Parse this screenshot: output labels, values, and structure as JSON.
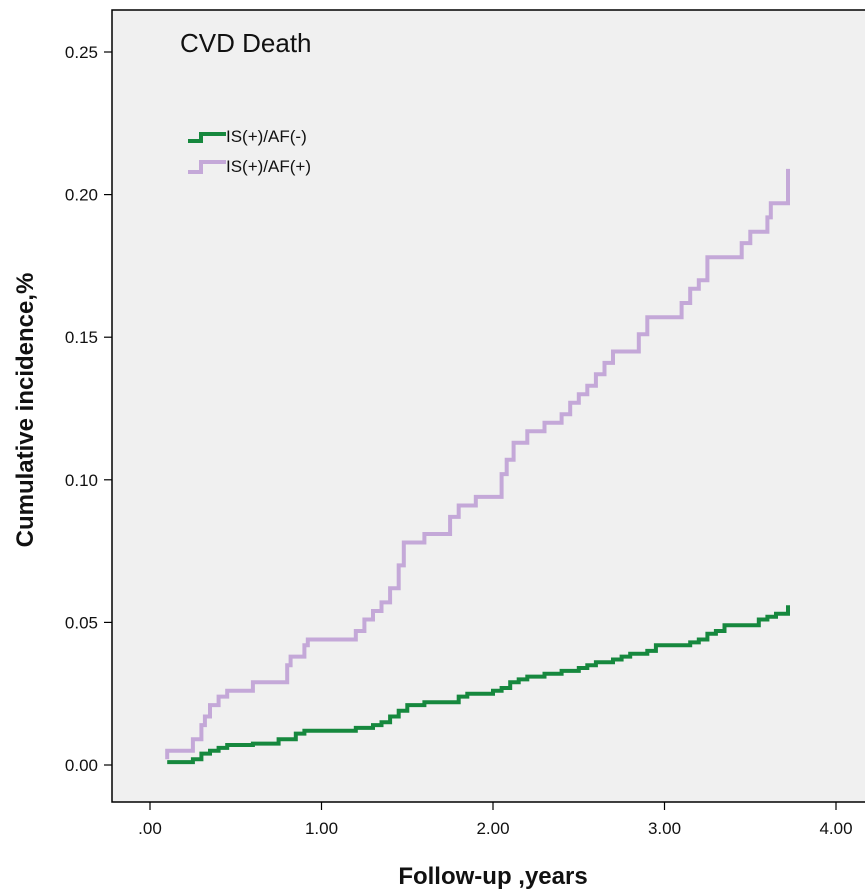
{
  "chart_data": {
    "type": "line",
    "title": "CVD Death",
    "xlabel": "Follow-up ,years",
    "ylabel": "Cumulative incidence,%",
    "xlim": [
      0,
      4
    ],
    "ylim": [
      0,
      0.25
    ],
    "x_ticks": [
      ".00",
      "1.00",
      "2.00",
      "3.00",
      "4.00"
    ],
    "y_ticks": [
      "0.00",
      "0.05",
      "0.10",
      "0.15",
      "0.20",
      "0.25"
    ],
    "x_tick_values": [
      0,
      1,
      2,
      3,
      4
    ],
    "y_tick_values": [
      0,
      0.05,
      0.1,
      0.15,
      0.2,
      0.25
    ],
    "grid": false,
    "legend_position": "top-left",
    "background": "#f0f0f0",
    "series": [
      {
        "name": "IS(+)/AF(-)",
        "color": "#16883e",
        "step": true,
        "points": [
          [
            0.1,
            0.001
          ],
          [
            0.25,
            0.002
          ],
          [
            0.3,
            0.004
          ],
          [
            0.35,
            0.005
          ],
          [
            0.4,
            0.006
          ],
          [
            0.45,
            0.007
          ],
          [
            0.6,
            0.0075
          ],
          [
            0.75,
            0.009
          ],
          [
            0.85,
            0.011
          ],
          [
            0.9,
            0.012
          ],
          [
            1.2,
            0.013
          ],
          [
            1.3,
            0.014
          ],
          [
            1.35,
            0.015
          ],
          [
            1.4,
            0.017
          ],
          [
            1.45,
            0.019
          ],
          [
            1.5,
            0.021
          ],
          [
            1.6,
            0.022
          ],
          [
            1.8,
            0.024
          ],
          [
            1.85,
            0.025
          ],
          [
            2.0,
            0.026
          ],
          [
            2.05,
            0.027
          ],
          [
            2.1,
            0.029
          ],
          [
            2.15,
            0.03
          ],
          [
            2.2,
            0.031
          ],
          [
            2.3,
            0.032
          ],
          [
            2.4,
            0.033
          ],
          [
            2.5,
            0.034
          ],
          [
            2.55,
            0.035
          ],
          [
            2.6,
            0.036
          ],
          [
            2.7,
            0.037
          ],
          [
            2.75,
            0.038
          ],
          [
            2.8,
            0.039
          ],
          [
            2.9,
            0.04
          ],
          [
            2.95,
            0.042
          ],
          [
            3.15,
            0.043
          ],
          [
            3.2,
            0.044
          ],
          [
            3.25,
            0.046
          ],
          [
            3.3,
            0.047
          ],
          [
            3.35,
            0.049
          ],
          [
            3.55,
            0.051
          ],
          [
            3.6,
            0.052
          ],
          [
            3.65,
            0.053
          ],
          [
            3.72,
            0.054
          ],
          [
            3.72,
            0.056
          ]
        ]
      },
      {
        "name": "IS(+)/AF(+)",
        "color": "#c4a8d8",
        "step": true,
        "points": [
          [
            0.1,
            0.002
          ],
          [
            0.1,
            0.005
          ],
          [
            0.25,
            0.009
          ],
          [
            0.3,
            0.014
          ],
          [
            0.32,
            0.017
          ],
          [
            0.35,
            0.021
          ],
          [
            0.4,
            0.024
          ],
          [
            0.45,
            0.026
          ],
          [
            0.6,
            0.029
          ],
          [
            0.8,
            0.035
          ],
          [
            0.82,
            0.038
          ],
          [
            0.9,
            0.042
          ],
          [
            0.92,
            0.044
          ],
          [
            1.2,
            0.047
          ],
          [
            1.25,
            0.051
          ],
          [
            1.3,
            0.054
          ],
          [
            1.35,
            0.057
          ],
          [
            1.4,
            0.062
          ],
          [
            1.45,
            0.07
          ],
          [
            1.48,
            0.078
          ],
          [
            1.6,
            0.081
          ],
          [
            1.75,
            0.087
          ],
          [
            1.8,
            0.091
          ],
          [
            1.9,
            0.094
          ],
          [
            2.05,
            0.102
          ],
          [
            2.08,
            0.107
          ],
          [
            2.12,
            0.113
          ],
          [
            2.2,
            0.117
          ],
          [
            2.3,
            0.12
          ],
          [
            2.4,
            0.123
          ],
          [
            2.45,
            0.127
          ],
          [
            2.5,
            0.13
          ],
          [
            2.55,
            0.133
          ],
          [
            2.6,
            0.137
          ],
          [
            2.65,
            0.141
          ],
          [
            2.7,
            0.145
          ],
          [
            2.85,
            0.151
          ],
          [
            2.9,
            0.157
          ],
          [
            3.1,
            0.162
          ],
          [
            3.15,
            0.167
          ],
          [
            3.2,
            0.17
          ],
          [
            3.25,
            0.178
          ],
          [
            3.45,
            0.183
          ],
          [
            3.5,
            0.187
          ],
          [
            3.6,
            0.192
          ],
          [
            3.62,
            0.197
          ],
          [
            3.72,
            0.198
          ],
          [
            3.72,
            0.209
          ]
        ]
      }
    ]
  }
}
